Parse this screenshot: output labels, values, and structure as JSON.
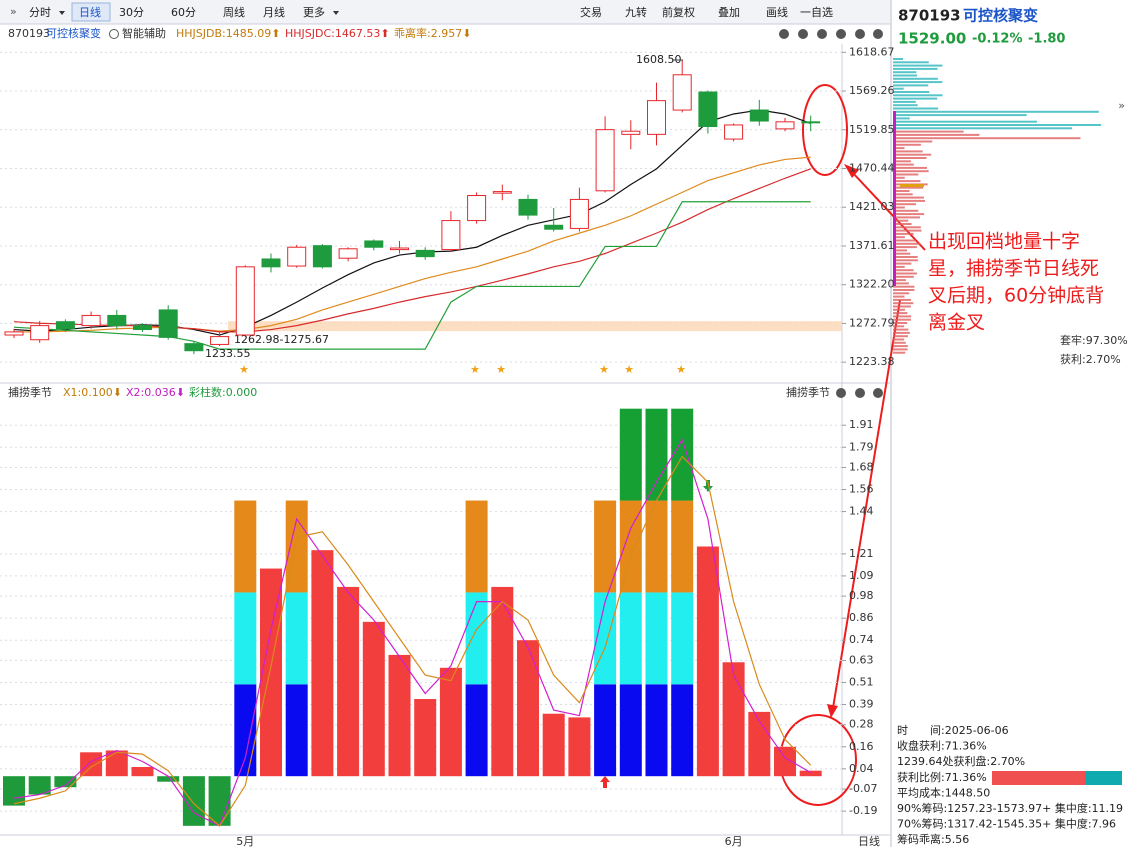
{
  "toolbar": {
    "left": [
      "分时",
      "日线",
      "30分",
      "60分",
      "周线",
      "月线",
      "更多"
    ],
    "right": [
      "交易",
      "九转",
      "前复权",
      "叠加",
      "画线",
      "一自选"
    ]
  },
  "info_bar": {
    "code": "870193",
    "name": "可控核聚变",
    "assist": "智能辅助",
    "items": [
      "HHJSJDB:1485.09⬆",
      "HHJSJDC:1467.53⬆",
      "乖离率:2.957⬇"
    ]
  },
  "lower_bar": {
    "name": "捕捞季节",
    "items": [
      "X1:0.100⬇",
      "X2:0.036⬇",
      "彩柱数:0.000"
    ],
    "right": "捕捞季节"
  },
  "quote": {
    "code": "870193",
    "name": "可控核聚变",
    "price": "1529.00",
    "change_pct": "-0.12%",
    "change": "-1.80"
  },
  "annotation": [
    "出现回档地量十字",
    "星，捕捞季节日线死",
    "叉后期，60分钟底背",
    "离金叉"
  ],
  "chips": {
    "trapped": "套牢:97.30%",
    "profit": "获利:2.70%",
    "details": [
      "时　　间:2025-06-06",
      "收盘获利:71.36%",
      "1239.64处获利盘:2.70%",
      "获利比例:71.36%",
      "平均成本:1448.50",
      "90%筹码:1257.23-1573.97+ 集中度:11.19",
      "70%筹码:1317.42-1545.35+ 集中度:7.96",
      "筹码乖离:5.56"
    ]
  },
  "period": "日线",
  "chart_data": [
    {
      "type": "candlestick",
      "open": [
        1258,
        1252,
        1275,
        1270,
        1283,
        1270,
        1290,
        1247,
        1246,
        1258,
        1355,
        1346,
        1372,
        1356,
        1378,
        1367,
        1366,
        1367,
        1404,
        1439,
        1431,
        1398,
        1394,
        1442,
        1514,
        1514,
        1545,
        1568,
        1508,
        1545,
        1521,
        1530
      ],
      "high": [
        1266,
        1276,
        1278,
        1288,
        1290,
        1273,
        1296,
        1250,
        1262.98,
        1347,
        1362,
        1373,
        1374,
        1370,
        1380,
        1378,
        1370,
        1416,
        1440,
        1450,
        1437,
        1420,
        1446,
        1537,
        1532,
        1580,
        1608.5,
        1570,
        1528,
        1558,
        1535,
        1538
      ],
      "low": [
        1254,
        1248,
        1262,
        1266,
        1265,
        1262,
        1252,
        1233.55,
        1244,
        1255,
        1338,
        1344,
        1343,
        1352,
        1366,
        1362,
        1354,
        1364,
        1400,
        1430,
        1405,
        1390,
        1390,
        1440,
        1495,
        1500,
        1542,
        1515,
        1505,
        1525,
        1518,
        1518
      ],
      "close": [
        1262,
        1270,
        1266,
        1283,
        1270,
        1265,
        1255,
        1238,
        1256,
        1345,
        1345,
        1370,
        1345,
        1368,
        1370,
        1369,
        1358,
        1404,
        1436,
        1441,
        1411,
        1393,
        1431,
        1520,
        1518,
        1557,
        1590,
        1524,
        1526,
        1531,
        1530,
        1529
      ],
      "up_color": "#e8262b",
      "down_color": "#1e9b3c",
      "lines": [
        {
          "color": "#111111",
          "values": [
            1265,
            1263,
            1265,
            1268,
            1270,
            1271,
            1270,
            1265,
            1258,
            1268,
            1283,
            1300,
            1318,
            1335,
            1350,
            1360,
            1364,
            1365,
            1370,
            1385,
            1398,
            1405,
            1412,
            1428,
            1450,
            1470,
            1500,
            1530,
            1540,
            1545,
            1540,
            1528
          ]
        },
        {
          "color": "#e08a1e",
          "values": [
            1262,
            1262,
            1263,
            1264,
            1266,
            1267,
            1268,
            1266,
            1263,
            1265,
            1270,
            1278,
            1290,
            1300,
            1310,
            1320,
            1330,
            1338,
            1345,
            1355,
            1365,
            1378,
            1388,
            1398,
            1410,
            1425,
            1440,
            1455,
            1465,
            1475,
            1482,
            1485
          ]
        },
        {
          "color": "#d62c2c",
          "values": [
            1275,
            1273,
            1272,
            1271,
            1270,
            1270,
            1268,
            1266,
            1262,
            1262,
            1265,
            1270,
            1277,
            1285,
            1292,
            1300,
            1307,
            1313,
            1320,
            1328,
            1336,
            1345,
            1352,
            1362,
            1375,
            1388,
            1402,
            1418,
            1432,
            1445,
            1458,
            1470
          ]
        },
        {
          "color": "#22a03a",
          "values": [
            1268,
            1266,
            1264,
            1262,
            1260,
            1258,
            1256,
            1250,
            1240,
            1240,
            1240,
            1240,
            1240,
            1240,
            1240,
            1240,
            1240,
            1300,
            1320,
            1320,
            1320,
            1320,
            1320,
            1371,
            1371,
            1371,
            1428,
            1428,
            1428,
            1428,
            1428,
            1428
          ]
        }
      ],
      "band": [
        1262.98,
        1275.67
      ],
      "band_label": "1262.98-1275.67",
      "high_label": "1608.50",
      "low_label": "1233.55",
      "ylim": [
        1207,
        1628
      ],
      "yticks": [
        1618.67,
        1569.26,
        1519.85,
        1470.44,
        1421.03,
        1371.61,
        {
          "value": 1322.2,
          "label": "1322.20"
        },
        1272.79,
        1223.38
      ],
      "grid": true
    },
    {
      "type": "bar",
      "categories": [
        null,
        null,
        null,
        null,
        null,
        null,
        null,
        null,
        null,
        "5月",
        null,
        null,
        null,
        null,
        null,
        null,
        null,
        null,
        null,
        null,
        null,
        null,
        null,
        null,
        null,
        null,
        null,
        null,
        "6月",
        null,
        null,
        null
      ],
      "series": [
        {
          "color": "#f33e3e",
          "values": [
            null,
            null,
            null,
            0.13,
            0.14,
            0.05,
            null,
            null,
            null,
            null,
            1.13,
            null,
            1.23,
            1.03,
            0.84,
            0.66,
            0.42,
            0.59,
            null,
            1.03,
            0.74,
            0.34,
            0.32,
            null,
            null,
            null,
            null,
            1.25,
            0.62,
            0.35,
            0.16,
            0.03
          ]
        },
        {
          "color": "#1f9a3a",
          "values": [
            -0.16,
            -0.1,
            -0.06,
            null,
            null,
            null,
            -0.03,
            -0.27,
            -0.27,
            null,
            null,
            null,
            null,
            null,
            null,
            null,
            null,
            null,
            null,
            null,
            null,
            null,
            null,
            null,
            null,
            null,
            null,
            null,
            null,
            null,
            null,
            null
          ]
        }
      ],
      "stack": [
        {
          "color": "#0a0af0",
          "values": [
            null,
            null,
            null,
            null,
            null,
            null,
            null,
            null,
            null,
            0.5,
            null,
            0.5,
            null,
            null,
            null,
            null,
            null,
            null,
            0.5,
            null,
            null,
            null,
            null,
            0.5,
            0.5,
            0.5,
            0.5,
            null,
            null,
            null,
            null,
            null
          ]
        },
        {
          "color": "#22eef0",
          "values": [
            null,
            null,
            null,
            null,
            null,
            null,
            null,
            null,
            null,
            0.5,
            null,
            0.5,
            null,
            null,
            null,
            null,
            null,
            null,
            0.5,
            null,
            null,
            null,
            null,
            0.5,
            0.5,
            0.5,
            0.5,
            null,
            null,
            null,
            null,
            null
          ]
        },
        {
          "color": "#e4891a",
          "values": [
            null,
            null,
            null,
            null,
            null,
            null,
            null,
            null,
            null,
            0.5,
            null,
            0.5,
            null,
            null,
            null,
            null,
            null,
            null,
            0.5,
            null,
            null,
            null,
            null,
            0.5,
            0.5,
            0.5,
            0.5,
            null,
            null,
            null,
            null,
            null
          ]
        },
        {
          "color": "#16a034",
          "values": [
            null,
            null,
            null,
            null,
            null,
            null,
            null,
            null,
            null,
            null,
            null,
            null,
            null,
            null,
            null,
            null,
            null,
            null,
            null,
            null,
            null,
            null,
            null,
            null,
            0.5,
            0.5,
            0.5,
            null,
            null,
            null,
            null,
            null
          ]
        }
      ],
      "lines": [
        {
          "color": "#d020d0",
          "values": [
            -0.12,
            -0.1,
            -0.05,
            0.08,
            0.14,
            0.08,
            0,
            -0.2,
            -0.27,
            0.1,
            0.8,
            1.4,
            1.2,
            1.0,
            0.85,
            0.65,
            0.45,
            0.6,
            0.95,
            0.95,
            0.7,
            0.36,
            0.33,
            0.95,
            1.35,
            1.6,
            1.83,
            1.4,
            0.55,
            0.3,
            0.1,
            0.02
          ]
        },
        {
          "color": "#d98a1a",
          "values": [
            -0.15,
            -0.12,
            -0.08,
            0.05,
            0.13,
            0.12,
            0.03,
            -0.15,
            -0.27,
            -0.05,
            0.6,
            1.3,
            1.33,
            1.15,
            0.95,
            0.75,
            0.55,
            0.52,
            0.8,
            0.95,
            0.85,
            0.55,
            0.4,
            0.7,
            1.2,
            1.5,
            1.74,
            1.6,
            0.95,
            0.5,
            0.2,
            0.06
          ]
        }
      ],
      "ylim": [
        -0.32,
        2.02
      ],
      "yticks": [
        1.91,
        1.79,
        1.68,
        1.56,
        1.44,
        1.21,
        1.09,
        0.98,
        0.86,
        0.74,
        0.63,
        0.51,
        0.39,
        0.28,
        0.16,
        0.04,
        -0.07,
        -0.19
      ],
      "grid": true
    }
  ]
}
